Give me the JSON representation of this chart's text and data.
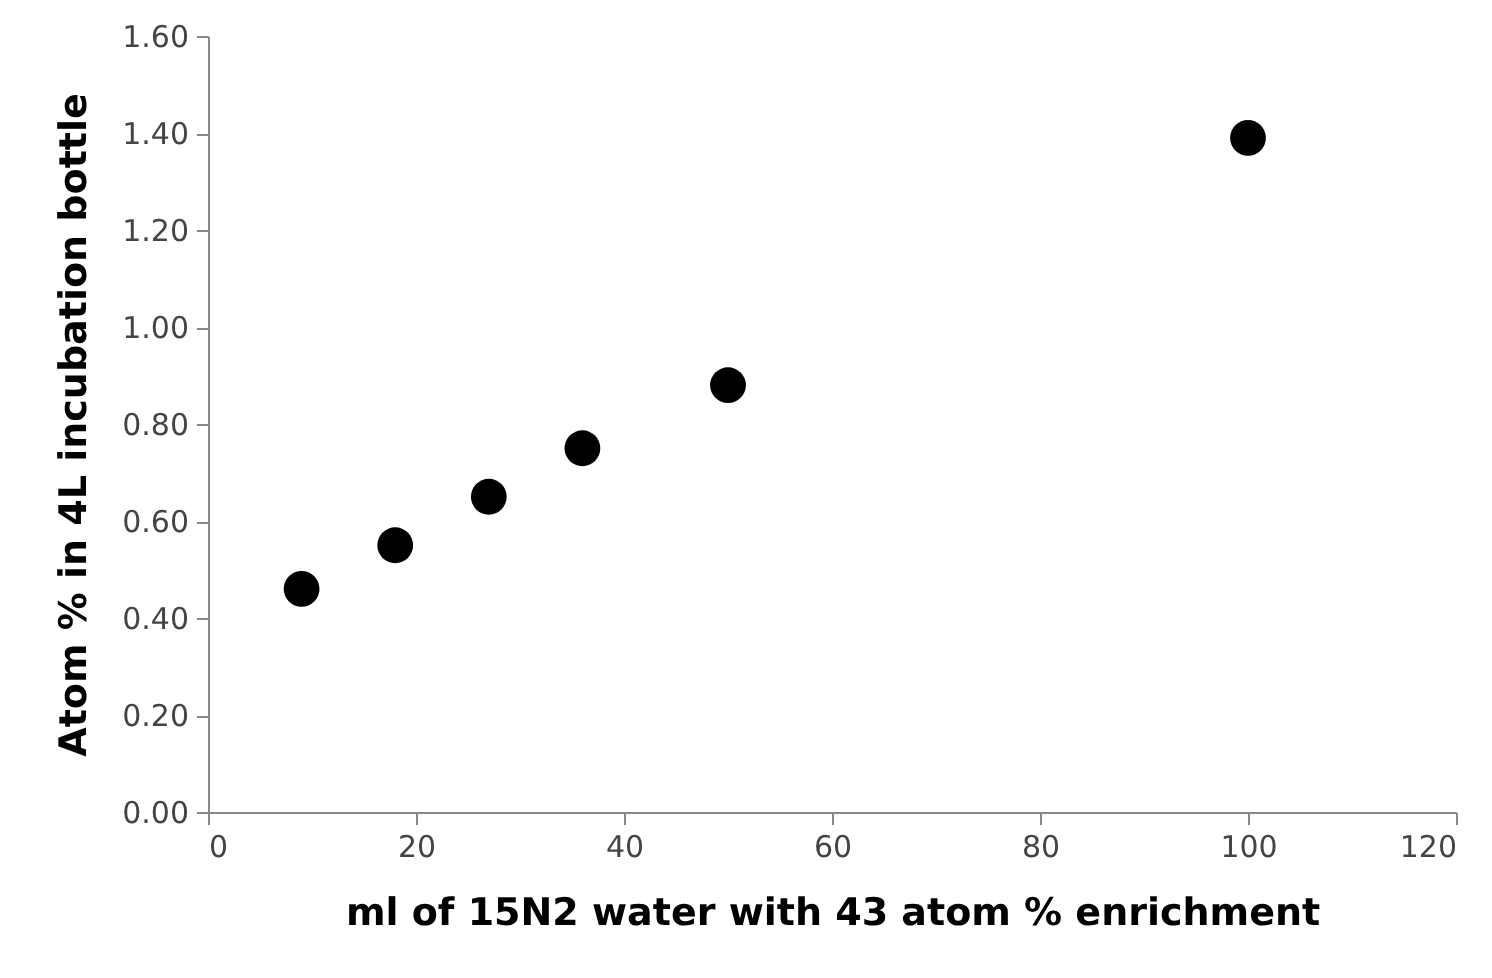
{
  "chart_data": {
    "type": "scatter",
    "xlabel": "ml of 15N2 water with 43 atom % enrichment",
    "ylabel": "Atom % in 4L incubation bottle",
    "x": [
      9,
      18,
      27,
      36,
      50,
      100
    ],
    "series": [
      {
        "color": "#000000",
        "values": [
          0.46,
          0.55,
          0.65,
          0.75,
          0.88,
          1.39
        ]
      }
    ],
    "xlim": [
      0,
      120
    ],
    "xticks": [
      0,
      20,
      40,
      60,
      80,
      100,
      120
    ],
    "ylim": [
      0,
      1.6
    ],
    "yticks": [
      {
        "value": 0,
        "label": "0.00"
      },
      {
        "value": 0.2,
        "label": "0.20"
      },
      {
        "value": 0.4,
        "label": "0.40"
      },
      {
        "value": 0.6,
        "label": "0.60"
      },
      {
        "value": 0.8,
        "label": "0.80"
      },
      {
        "value": 1.0,
        "label": "1.00"
      },
      {
        "value": 1.2,
        "label": "1.20"
      },
      {
        "value": 1.4,
        "label": "1.40"
      },
      {
        "value": 1.6,
        "label": "1.60"
      }
    ],
    "grid": false,
    "marker": "circle"
  }
}
